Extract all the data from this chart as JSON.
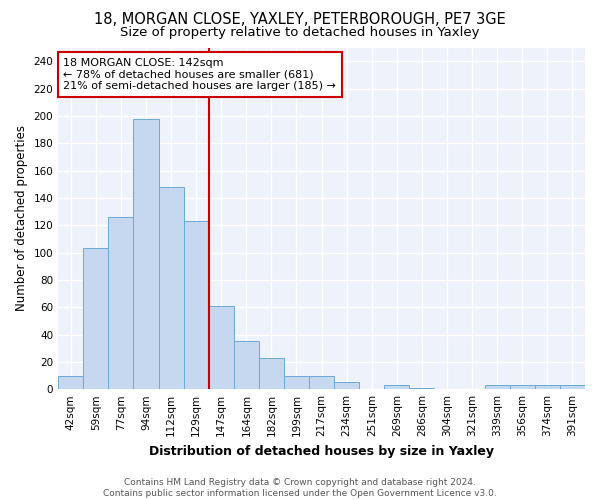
{
  "title": "18, MORGAN CLOSE, YAXLEY, PETERBOROUGH, PE7 3GE",
  "subtitle": "Size of property relative to detached houses in Yaxley",
  "xlabel": "Distribution of detached houses by size in Yaxley",
  "ylabel": "Number of detached properties",
  "categories": [
    "42sqm",
    "59sqm",
    "77sqm",
    "94sqm",
    "112sqm",
    "129sqm",
    "147sqm",
    "164sqm",
    "182sqm",
    "199sqm",
    "217sqm",
    "234sqm",
    "251sqm",
    "269sqm",
    "286sqm",
    "304sqm",
    "321sqm",
    "339sqm",
    "356sqm",
    "374sqm",
    "391sqm"
  ],
  "values": [
    10,
    103,
    126,
    198,
    148,
    123,
    61,
    35,
    23,
    10,
    10,
    5,
    0,
    3,
    1,
    0,
    0,
    3,
    3,
    3,
    3
  ],
  "bar_color": "#c5d8f0",
  "bar_edge_color": "#6aaad4",
  "vline_color": "#cc0000",
  "annotation_text": "18 MORGAN CLOSE: 142sqm\n← 78% of detached houses are smaller (681)\n21% of semi-detached houses are larger (185) →",
  "annotation_box_color": "#ffffff",
  "annotation_box_edge_color": "#cc0000",
  "ylim": [
    0,
    250
  ],
  "yticks": [
    0,
    20,
    40,
    60,
    80,
    100,
    120,
    140,
    160,
    180,
    200,
    220,
    240
  ],
  "background_color": "#eef2fa",
  "footer": "Contains HM Land Registry data © Crown copyright and database right 2024.\nContains public sector information licensed under the Open Government Licence v3.0.",
  "title_fontsize": 10.5,
  "subtitle_fontsize": 9.5,
  "xlabel_fontsize": 9,
  "ylabel_fontsize": 8.5,
  "tick_fontsize": 7.5,
  "footer_fontsize": 6.5,
  "ann_fontsize": 8
}
